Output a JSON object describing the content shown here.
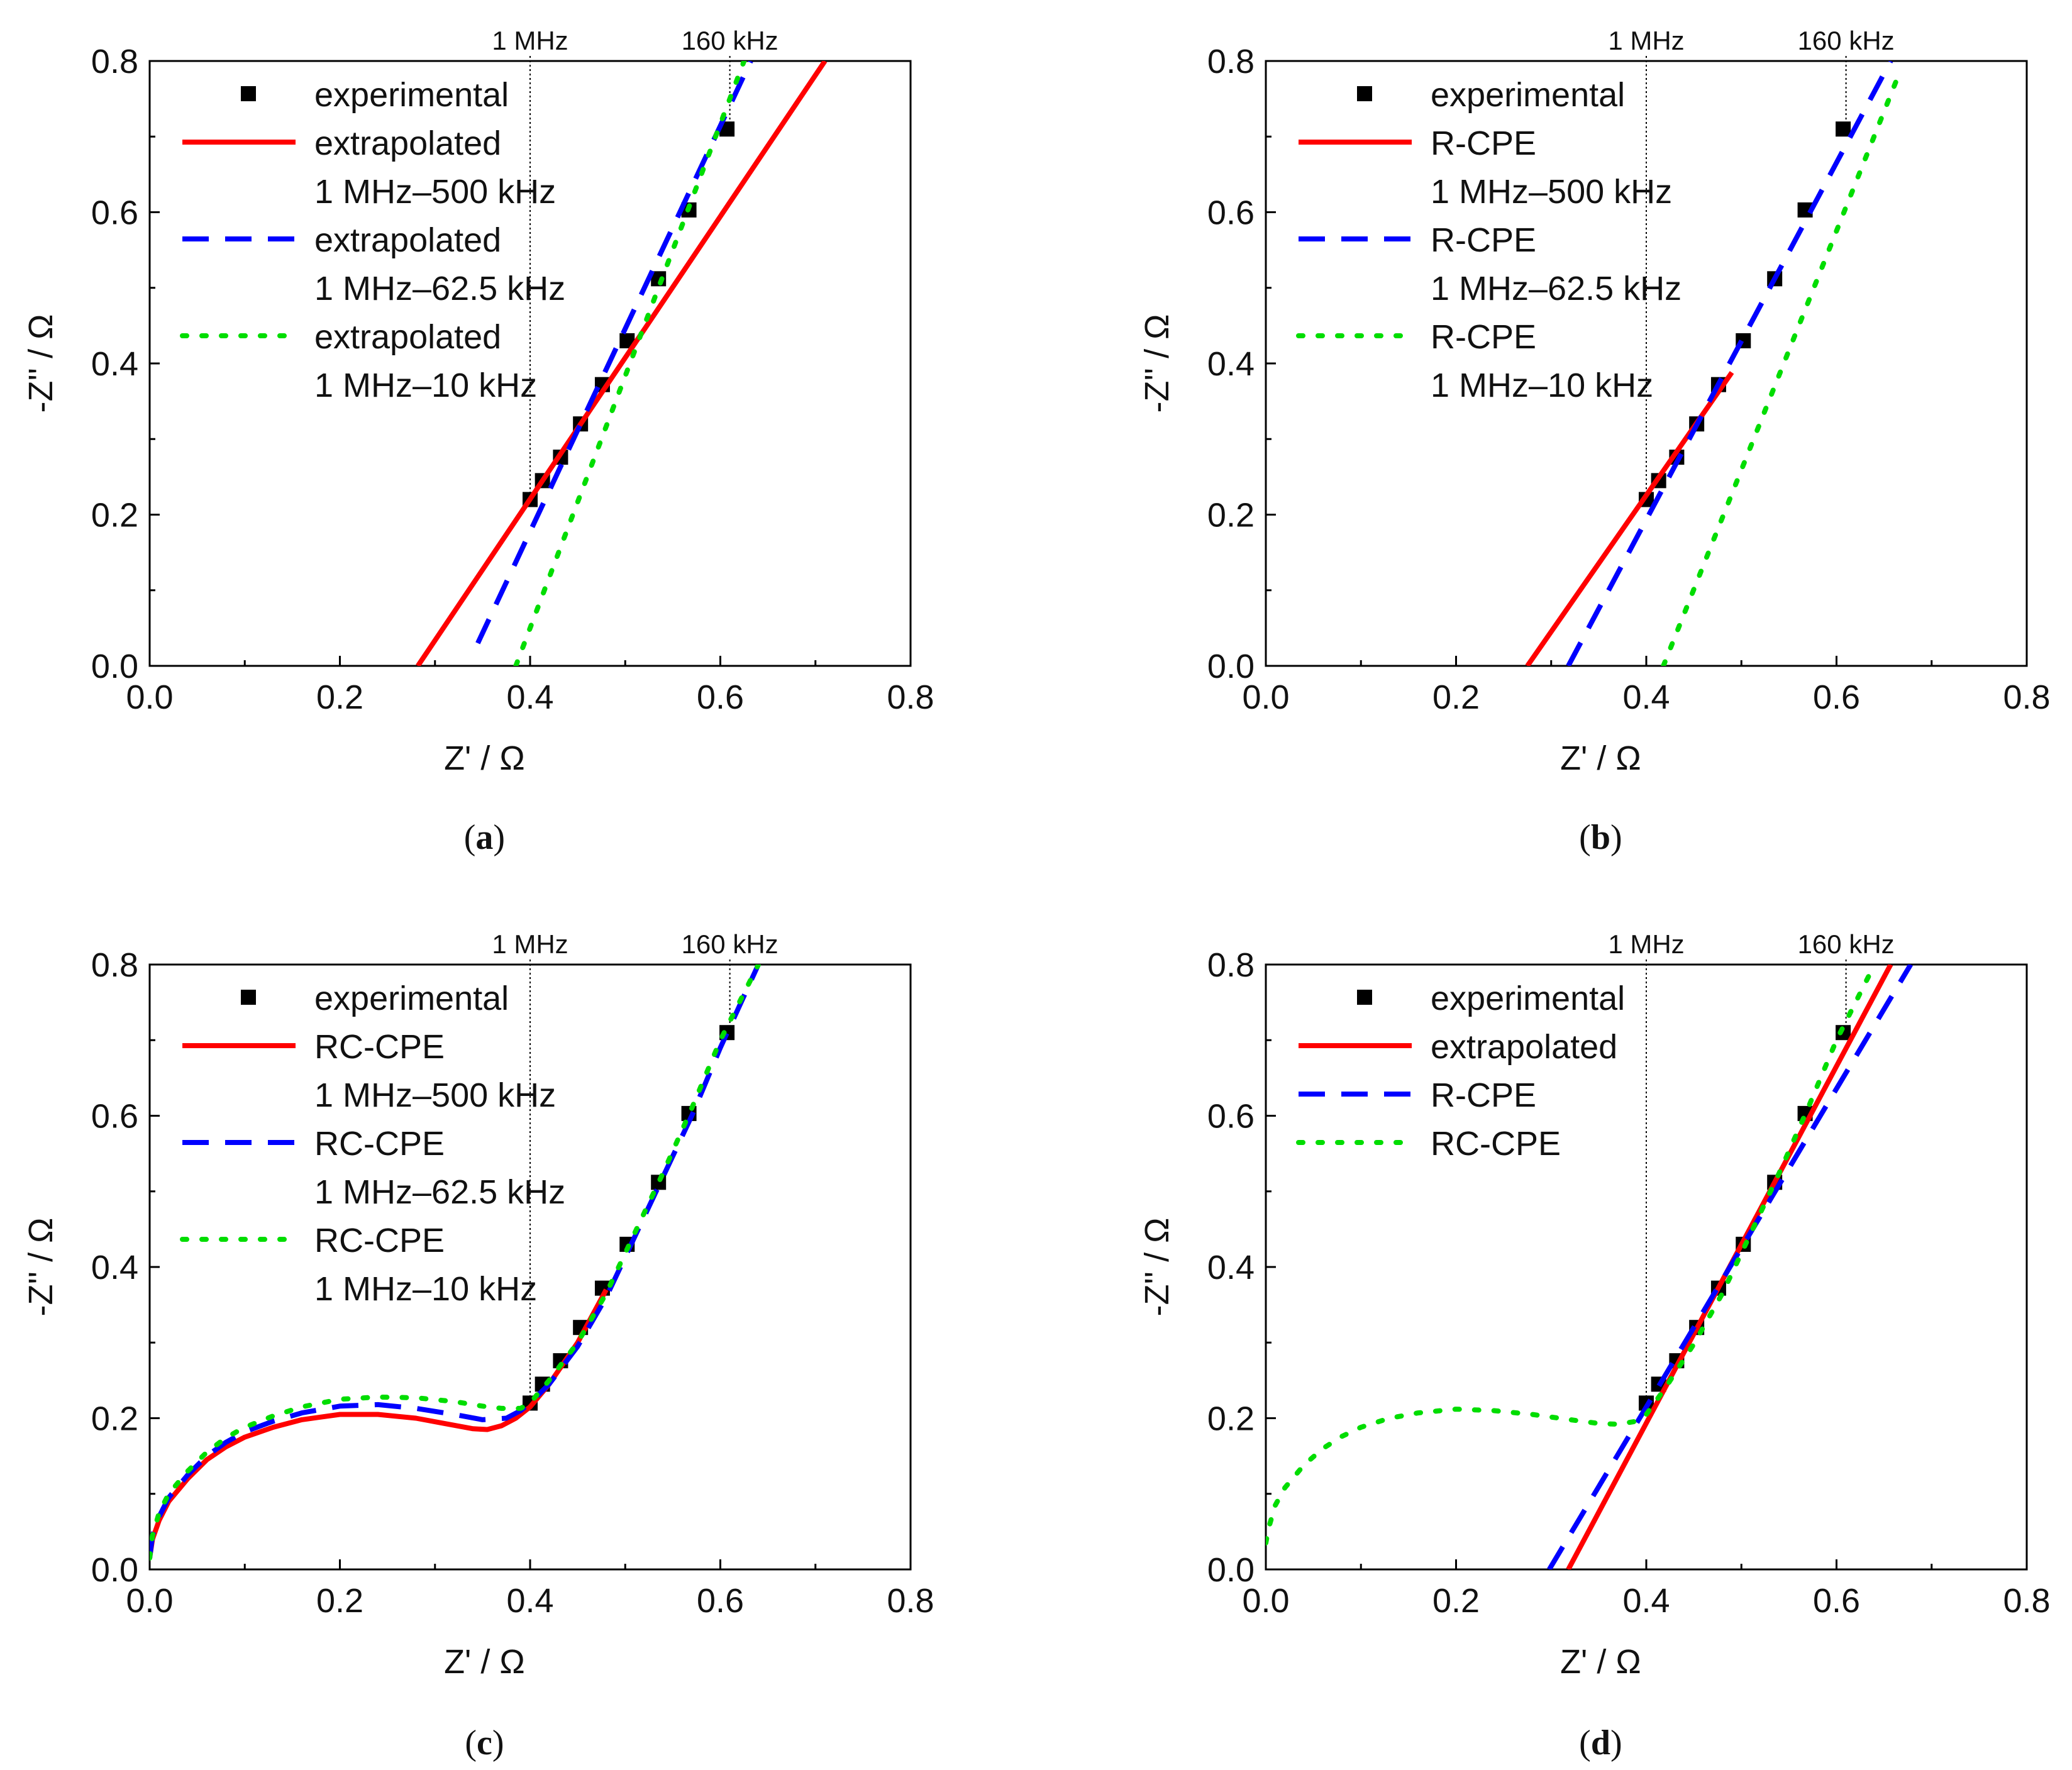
{
  "colors": {
    "experimental": "#000000",
    "red": "#ff0000",
    "blue": "#0000ff",
    "green": "#00dd00",
    "guide": "#000000"
  },
  "chart_data": [
    {
      "id": "a",
      "type": "scatter",
      "caption": {
        "open": "(",
        "letter": "a",
        "close": ")"
      },
      "xlabel": "Z' / Ω",
      "ylabel": "-Z'' / Ω",
      "xlim": [
        0,
        0.8
      ],
      "ylim": [
        0,
        0.8
      ],
      "xticks": [
        "0.0",
        "0.2",
        "0.4",
        "0.6",
        "0.8"
      ],
      "yticks": [
        "0.0",
        "0.2",
        "0.4",
        "0.6",
        "0.8"
      ],
      "markers": [
        {
          "label": "1 MHz",
          "x": 0.4
        },
        {
          "label": "160 kHz",
          "x": 0.61
        }
      ],
      "legend": [
        {
          "symbol": "square",
          "color": "#000000",
          "label": "experimental"
        },
        {
          "symbol": "solid",
          "color": "#ff0000",
          "label": "extrapolated"
        },
        {
          "symbol": "none",
          "label": "1 MHz–500 kHz"
        },
        {
          "symbol": "dashed",
          "color": "#0000ff",
          "label": "extrapolated"
        },
        {
          "symbol": "none",
          "label": "1 MHz–62.5 kHz"
        },
        {
          "symbol": "dotted",
          "color": "#00dd00",
          "label": "extrapolated"
        },
        {
          "symbol": "none",
          "label": "1 MHz–10 kHz"
        }
      ],
      "series": [
        {
          "name": "experimental",
          "style": "square",
          "color": "#000000",
          "x": [
            0.4,
            0.413,
            0.432,
            0.453,
            0.476,
            0.502,
            0.535,
            0.567,
            0.607
          ],
          "y": [
            0.22,
            0.245,
            0.276,
            0.32,
            0.372,
            0.43,
            0.512,
            0.603,
            0.71
          ]
        },
        {
          "name": "extrapolated 1 MHz–500 kHz",
          "style": "solid",
          "color": "#ff0000",
          "x": [
            0.282,
            0.71
          ],
          "y": [
            0.0,
            0.8
          ]
        },
        {
          "name": "extrapolated 1 MHz–62.5 kHz",
          "style": "dashed",
          "color": "#0000ff",
          "x": [
            0.345,
            0.632
          ],
          "y": [
            0.03,
            0.8
          ]
        },
        {
          "name": "extrapolated 1 MHz–10 kHz",
          "style": "dotted",
          "color": "#00dd00",
          "x": [
            0.385,
            0.625
          ],
          "y": [
            0.0,
            0.8
          ]
        }
      ]
    },
    {
      "id": "b",
      "type": "scatter",
      "caption": {
        "open": "(",
        "letter": "b",
        "close": ")"
      },
      "xlabel": "Z' / Ω",
      "ylabel": "-Z'' / Ω",
      "xlim": [
        0,
        0.8
      ],
      "ylim": [
        0,
        0.8
      ],
      "xticks": [
        "0.0",
        "0.2",
        "0.4",
        "0.6",
        "0.8"
      ],
      "yticks": [
        "0.0",
        "0.2",
        "0.4",
        "0.6",
        "0.8"
      ],
      "markers": [
        {
          "label": "1 MHz",
          "x": 0.4
        },
        {
          "label": "160 kHz",
          "x": 0.61
        }
      ],
      "legend": [
        {
          "symbol": "square",
          "color": "#000000",
          "label": "experimental"
        },
        {
          "symbol": "solid",
          "color": "#ff0000",
          "label": "R-CPE"
        },
        {
          "symbol": "none",
          "label": "1 MHz–500 kHz"
        },
        {
          "symbol": "dashed",
          "color": "#0000ff",
          "label": "R-CPE"
        },
        {
          "symbol": "none",
          "label": "1 MHz–62.5 kHz"
        },
        {
          "symbol": "dotted",
          "color": "#00dd00",
          "label": "R-CPE"
        },
        {
          "symbol": "none",
          "label": "1 MHz–10 kHz"
        }
      ],
      "series": [
        {
          "name": "experimental",
          "style": "square",
          "color": "#000000",
          "x": [
            0.4,
            0.413,
            0.432,
            0.453,
            0.476,
            0.502,
            0.535,
            0.567,
            0.607
          ],
          "y": [
            0.22,
            0.245,
            0.276,
            0.32,
            0.372,
            0.43,
            0.512,
            0.603,
            0.71
          ]
        },
        {
          "name": "R-CPE 1 MHz–500 kHz",
          "style": "solid",
          "color": "#ff0000",
          "x": [
            0.275,
            0.49
          ],
          "y": [
            0.0,
            0.388
          ]
        },
        {
          "name": "R-CPE 1 MHz–62.5 kHz",
          "style": "dashed",
          "color": "#0000ff",
          "x": [
            0.318,
            0.657
          ],
          "y": [
            0.0,
            0.8
          ]
        },
        {
          "name": "R-CPE 1 MHz–10 kHz",
          "style": "dotted",
          "color": "#00dd00",
          "x": [
            0.418,
            0.668
          ],
          "y": [
            0.0,
            0.79
          ]
        }
      ]
    },
    {
      "id": "c",
      "type": "scatter",
      "caption": {
        "open": "(",
        "letter": "c",
        "close": ")"
      },
      "xlabel": "Z' / Ω",
      "ylabel": "-Z'' / Ω",
      "xlim": [
        0,
        0.8
      ],
      "ylim": [
        0,
        0.8
      ],
      "xticks": [
        "0.0",
        "0.2",
        "0.4",
        "0.6",
        "0.8"
      ],
      "yticks": [
        "0.0",
        "0.2",
        "0.4",
        "0.6",
        "0.8"
      ],
      "markers": [
        {
          "label": "1 MHz",
          "x": 0.4
        },
        {
          "label": "160 kHz",
          "x": 0.61
        }
      ],
      "legend": [
        {
          "symbol": "square",
          "color": "#000000",
          "label": "experimental"
        },
        {
          "symbol": "solid",
          "color": "#ff0000",
          "label": "RC-CPE"
        },
        {
          "symbol": "none",
          "label": "1 MHz–500 kHz"
        },
        {
          "symbol": "dashed",
          "color": "#0000ff",
          "label": "RC-CPE"
        },
        {
          "symbol": "none",
          "label": "1 MHz–62.5 kHz"
        },
        {
          "symbol": "dotted",
          "color": "#00dd00",
          "label": "RC-CPE"
        },
        {
          "symbol": "none",
          "label": "1 MHz–10 kHz"
        }
      ],
      "series": [
        {
          "name": "experimental",
          "style": "square",
          "color": "#000000",
          "x": [
            0.4,
            0.413,
            0.432,
            0.453,
            0.476,
            0.502,
            0.535,
            0.567,
            0.607
          ],
          "y": [
            0.22,
            0.245,
            0.276,
            0.32,
            0.372,
            0.43,
            0.512,
            0.603,
            0.71
          ]
        },
        {
          "name": "RC-CPE 1 MHz–500 kHz",
          "style": "solid",
          "color": "#ff0000",
          "x": [
            0.0,
            0.003,
            0.01,
            0.02,
            0.04,
            0.06,
            0.08,
            0.1,
            0.13,
            0.16,
            0.2,
            0.24,
            0.28,
            0.31,
            0.34,
            0.355,
            0.37,
            0.385,
            0.4,
            0.42,
            0.45,
            0.48
          ],
          "y": [
            0.015,
            0.04,
            0.065,
            0.09,
            0.12,
            0.145,
            0.162,
            0.175,
            0.188,
            0.198,
            0.205,
            0.205,
            0.2,
            0.193,
            0.186,
            0.185,
            0.19,
            0.2,
            0.215,
            0.245,
            0.3,
            0.37
          ]
        },
        {
          "name": "RC-CPE 1 MHz–62.5 kHz",
          "style": "dashed",
          "color": "#0000ff",
          "x": [
            0.0,
            0.003,
            0.01,
            0.02,
            0.04,
            0.06,
            0.08,
            0.1,
            0.13,
            0.16,
            0.2,
            0.24,
            0.28,
            0.32,
            0.35,
            0.375,
            0.39,
            0.4,
            0.42,
            0.45,
            0.48,
            0.51,
            0.54,
            0.57,
            0.6,
            0.64
          ],
          "y": [
            0.015,
            0.045,
            0.07,
            0.095,
            0.125,
            0.15,
            0.168,
            0.182,
            0.196,
            0.207,
            0.216,
            0.218,
            0.213,
            0.205,
            0.198,
            0.2,
            0.21,
            0.22,
            0.245,
            0.295,
            0.36,
            0.44,
            0.52,
            0.6,
            0.69,
            0.8
          ]
        },
        {
          "name": "RC-CPE 1 MHz–10 kHz",
          "style": "dotted",
          "color": "#00dd00",
          "x": [
            0.0,
            0.003,
            0.01,
            0.02,
            0.04,
            0.06,
            0.08,
            0.1,
            0.13,
            0.16,
            0.2,
            0.24,
            0.28,
            0.32,
            0.35,
            0.37,
            0.39,
            0.4,
            0.42,
            0.45,
            0.48,
            0.51,
            0.54,
            0.57,
            0.6,
            0.64
          ],
          "y": [
            0.015,
            0.045,
            0.075,
            0.1,
            0.13,
            0.155,
            0.174,
            0.188,
            0.203,
            0.215,
            0.225,
            0.228,
            0.227,
            0.222,
            0.216,
            0.213,
            0.213,
            0.22,
            0.25,
            0.3,
            0.365,
            0.445,
            0.525,
            0.61,
            0.7,
            0.8
          ]
        }
      ]
    },
    {
      "id": "d",
      "type": "scatter",
      "caption": {
        "open": "(",
        "letter": "d",
        "close": ")"
      },
      "xlabel": "Z' / Ω",
      "ylabel": "-Z'' / Ω",
      "xlim": [
        0,
        0.8
      ],
      "ylim": [
        0,
        0.8
      ],
      "xticks": [
        "0.0",
        "0.2",
        "0.4",
        "0.6",
        "0.8"
      ],
      "yticks": [
        "0.0",
        "0.2",
        "0.4",
        "0.6",
        "0.8"
      ],
      "markers": [
        {
          "label": "1 MHz",
          "x": 0.4
        },
        {
          "label": "160 kHz",
          "x": 0.61
        }
      ],
      "legend": [
        {
          "symbol": "square",
          "color": "#000000",
          "label": "experimental"
        },
        {
          "symbol": "solid",
          "color": "#ff0000",
          "label": "extrapolated"
        },
        {
          "symbol": "dashed",
          "color": "#0000ff",
          "label": "R-CPE"
        },
        {
          "symbol": "dotted",
          "color": "#00dd00",
          "label": "RC-CPE"
        }
      ],
      "series": [
        {
          "name": "experimental",
          "style": "square",
          "color": "#000000",
          "x": [
            0.4,
            0.413,
            0.432,
            0.453,
            0.476,
            0.502,
            0.535,
            0.567,
            0.607
          ],
          "y": [
            0.22,
            0.245,
            0.276,
            0.32,
            0.372,
            0.43,
            0.512,
            0.603,
            0.71
          ]
        },
        {
          "name": "extrapolated",
          "style": "solid",
          "color": "#ff0000",
          "x": [
            0.318,
            0.657
          ],
          "y": [
            0.0,
            0.8
          ]
        },
        {
          "name": "R-CPE",
          "style": "dashed",
          "color": "#0000ff",
          "x": [
            0.298,
            0.678
          ],
          "y": [
            0.0,
            0.8
          ]
        },
        {
          "name": "RC-CPE",
          "style": "dotted",
          "color": "#00dd00",
          "x": [
            0.0,
            0.003,
            0.01,
            0.02,
            0.04,
            0.06,
            0.08,
            0.1,
            0.13,
            0.16,
            0.2,
            0.24,
            0.28,
            0.32,
            0.35,
            0.37,
            0.39,
            0.4,
            0.42,
            0.45,
            0.48,
            0.51,
            0.54,
            0.57,
            0.6,
            0.64
          ],
          "y": [
            0.035,
            0.055,
            0.085,
            0.108,
            0.138,
            0.16,
            0.176,
            0.188,
            0.2,
            0.207,
            0.212,
            0.21,
            0.205,
            0.198,
            0.193,
            0.192,
            0.196,
            0.205,
            0.24,
            0.298,
            0.365,
            0.445,
            0.525,
            0.61,
            0.7,
            0.8
          ]
        }
      ]
    }
  ]
}
